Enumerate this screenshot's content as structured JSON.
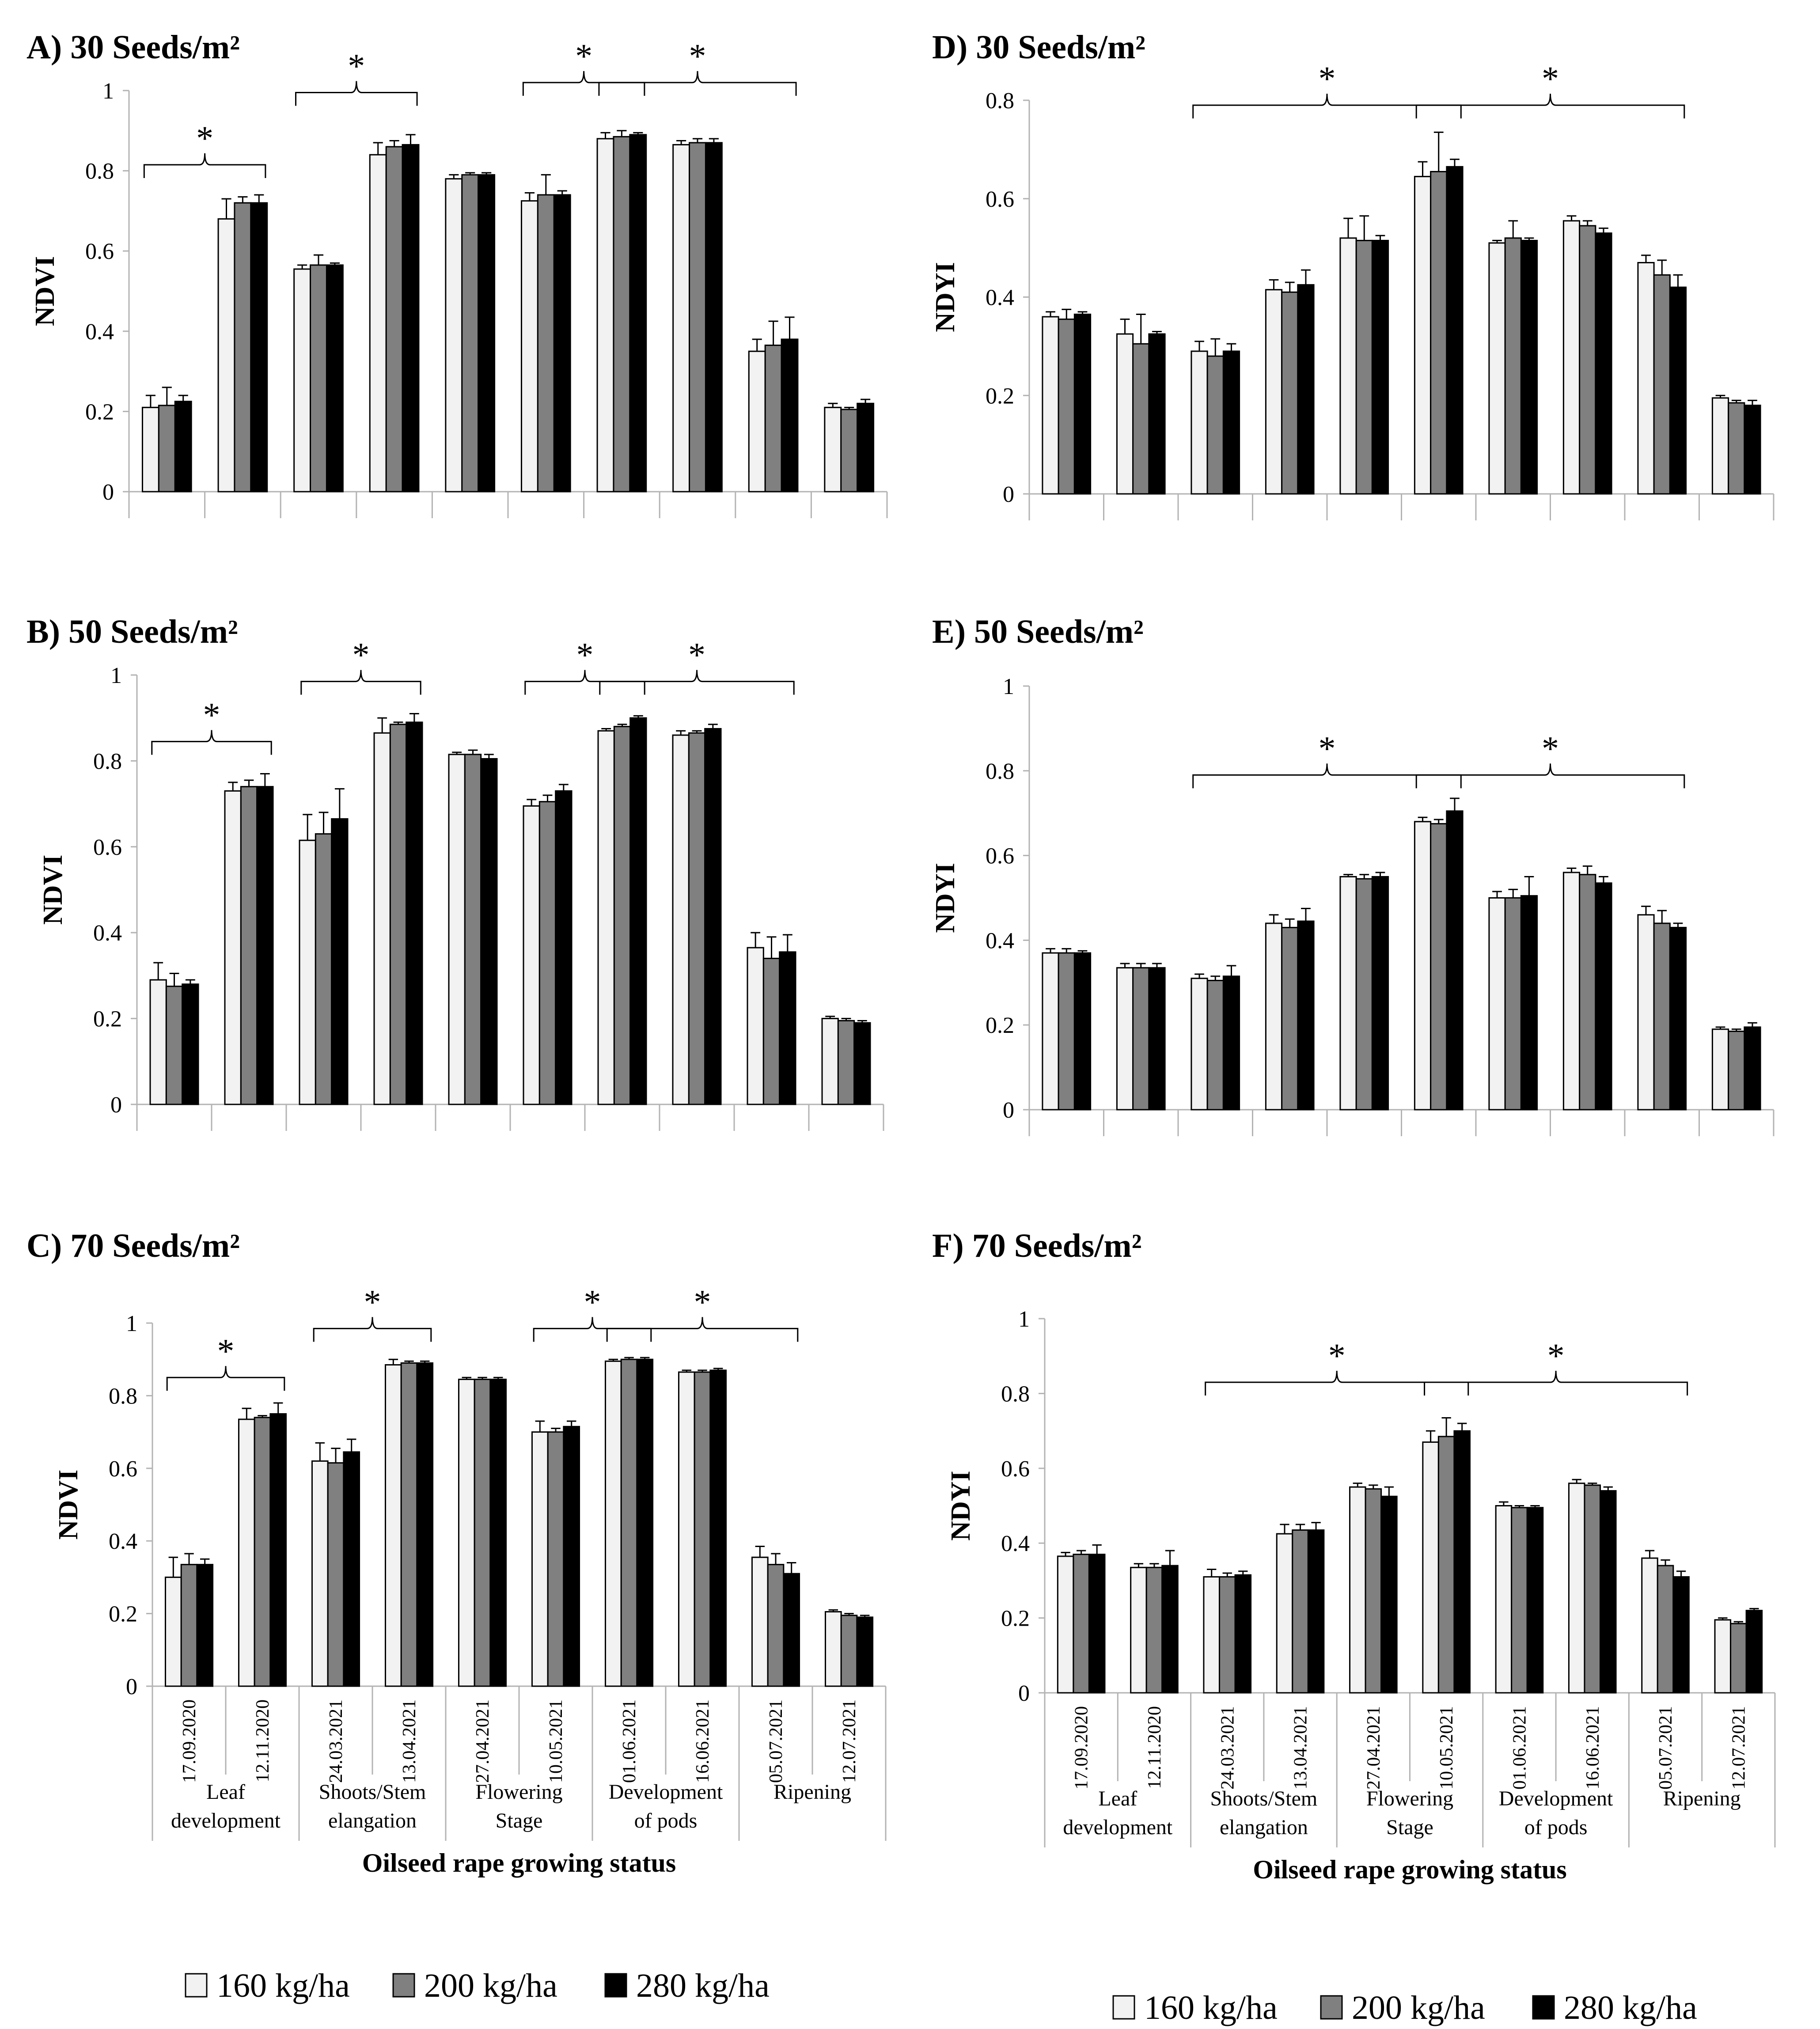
{
  "legend": {
    "left": [
      {
        "label": "160 kg/ha",
        "color": "#f2f2f2"
      },
      {
        "label": "200 kg/ha",
        "color": "#808080"
      },
      {
        "label": "280 kg/ha",
        "color": "#000000"
      }
    ],
    "right": [
      {
        "label": "160 kg/ha",
        "color": "#f2f2f2"
      },
      {
        "label": "200 kg/ha",
        "color": "#808080"
      },
      {
        "label": "280 kg/ha",
        "color": "#000000"
      }
    ]
  },
  "x_title": "Oilseed rape growing status",
  "dates": [
    "17.09.2020",
    "12.11.2020",
    "24.03.2021",
    "13.04.2021",
    "27.04.2021",
    "10.05.2021",
    "01.06.2021",
    "16.06.2021",
    "05.07.2021",
    "12.07.2021"
  ],
  "stages": [
    {
      "line1": "Leaf",
      "line2": "development"
    },
    {
      "line1": "Shoots/Stem",
      "line2": "elangation"
    },
    {
      "line1": "Flowering",
      "line2": "Stage"
    },
    {
      "line1": "Development",
      "line2": "of pods"
    },
    {
      "line1": "Ripening",
      "line2": ""
    }
  ],
  "significance_symbol": "*",
  "chart_data": [
    {
      "type": "bar",
      "title": "A) 30 Seeds/m²",
      "ylabel": "NDVI",
      "ylim": [
        0,
        1
      ],
      "yticks": [
        "0",
        "0.2",
        "0.4",
        "0.6",
        "0.8",
        "1"
      ],
      "categories": [
        "17.09.2020",
        "12.11.2020",
        "24.03.2021",
        "13.04.2021",
        "27.04.2021",
        "10.05.2021",
        "01.06.2021",
        "16.06.2021",
        "05.07.2021",
        "12.07.2021"
      ],
      "series": [
        {
          "name": "160 kg/ha",
          "values": [
            0.21,
            0.68,
            0.555,
            0.84,
            0.78,
            0.725,
            0.88,
            0.865,
            0.35,
            0.21
          ],
          "errors": [
            0.03,
            0.05,
            0.01,
            0.03,
            0.01,
            0.02,
            0.015,
            0.01,
            0.03,
            0.01
          ]
        },
        {
          "name": "200 kg/ha",
          "values": [
            0.215,
            0.72,
            0.565,
            0.86,
            0.79,
            0.74,
            0.885,
            0.87,
            0.365,
            0.205
          ],
          "errors": [
            0.045,
            0.015,
            0.025,
            0.015,
            0.005,
            0.05,
            0.015,
            0.01,
            0.06,
            0.005
          ]
        },
        {
          "name": "280 kg/ha",
          "values": [
            0.225,
            0.72,
            0.565,
            0.865,
            0.79,
            0.74,
            0.89,
            0.87,
            0.38,
            0.22
          ],
          "errors": [
            0.015,
            0.02,
            0.005,
            0.025,
            0.005,
            0.01,
            0.005,
            0.01,
            0.055,
            0.01
          ]
        }
      ],
      "brackets": [
        {
          "from": 0,
          "to": 1,
          "y": 0.815,
          "label": "*"
        },
        {
          "from": 2,
          "to": 3,
          "y": 0.995,
          "label": "*"
        },
        {
          "from": 5,
          "to": 6,
          "y": 1.02,
          "label": "*"
        },
        {
          "from": 6,
          "to": 8,
          "y": 1.02,
          "label": "*"
        }
      ]
    },
    {
      "type": "bar",
      "title": "B) 50 Seeds/m²",
      "ylabel": "NDVI",
      "ylim": [
        0,
        1
      ],
      "yticks": [
        "0",
        "0.2",
        "0.4",
        "0.6",
        "0.8",
        "1"
      ],
      "categories": [
        "17.09.2020",
        "12.11.2020",
        "24.03.2021",
        "13.04.2021",
        "27.04.2021",
        "10.05.2021",
        "01.06.2021",
        "16.06.2021",
        "05.07.2021",
        "12.07.2021"
      ],
      "series": [
        {
          "name": "160 kg/ha",
          "values": [
            0.29,
            0.73,
            0.615,
            0.865,
            0.815,
            0.695,
            0.87,
            0.86,
            0.365,
            0.2
          ],
          "errors": [
            0.04,
            0.02,
            0.06,
            0.035,
            0.005,
            0.015,
            0.005,
            0.01,
            0.035,
            0.005
          ]
        },
        {
          "name": "200 kg/ha",
          "values": [
            0.275,
            0.74,
            0.63,
            0.885,
            0.815,
            0.705,
            0.88,
            0.865,
            0.34,
            0.195
          ],
          "errors": [
            0.03,
            0.015,
            0.05,
            0.005,
            0.01,
            0.015,
            0.005,
            0.005,
            0.05,
            0.005
          ]
        },
        {
          "name": "280 kg/ha",
          "values": [
            0.28,
            0.74,
            0.665,
            0.89,
            0.805,
            0.73,
            0.9,
            0.875,
            0.355,
            0.19
          ],
          "errors": [
            0.01,
            0.03,
            0.07,
            0.02,
            0.01,
            0.015,
            0.005,
            0.01,
            0.04,
            0.005
          ]
        }
      ],
      "brackets": [
        {
          "from": 0,
          "to": 1,
          "y": 0.845,
          "label": "*"
        },
        {
          "from": 2,
          "to": 3,
          "y": 0.985,
          "label": "*"
        },
        {
          "from": 5,
          "to": 6,
          "y": 0.985,
          "label": "*"
        },
        {
          "from": 6,
          "to": 8,
          "y": 0.985,
          "label": "*"
        }
      ]
    },
    {
      "type": "bar",
      "title": "C) 70 Seeds/m²",
      "ylabel": "NDVI",
      "ylim": [
        0,
        1
      ],
      "yticks": [
        "0",
        "0.2",
        "0.4",
        "0.6",
        "0.8",
        "1"
      ],
      "categories": [
        "17.09.2020",
        "12.11.2020",
        "24.03.2021",
        "13.04.2021",
        "27.04.2021",
        "10.05.2021",
        "01.06.2021",
        "16.06.2021",
        "05.07.2021",
        "12.07.2021"
      ],
      "series": [
        {
          "name": "160 kg/ha",
          "values": [
            0.3,
            0.735,
            0.62,
            0.885,
            0.845,
            0.7,
            0.895,
            0.865,
            0.355,
            0.205
          ],
          "errors": [
            0.055,
            0.03,
            0.05,
            0.015,
            0.005,
            0.03,
            0.005,
            0.005,
            0.03,
            0.005
          ]
        },
        {
          "name": "200 kg/ha",
          "values": [
            0.335,
            0.74,
            0.615,
            0.89,
            0.845,
            0.7,
            0.9,
            0.865,
            0.335,
            0.195
          ],
          "errors": [
            0.03,
            0.005,
            0.04,
            0.005,
            0.005,
            0.01,
            0.005,
            0.005,
            0.03,
            0.005
          ]
        },
        {
          "name": "280 kg/ha",
          "values": [
            0.335,
            0.75,
            0.645,
            0.89,
            0.845,
            0.715,
            0.9,
            0.87,
            0.31,
            0.19
          ],
          "errors": [
            0.015,
            0.03,
            0.035,
            0.005,
            0.005,
            0.015,
            0.005,
            0.005,
            0.03,
            0.005
          ]
        }
      ],
      "brackets": [
        {
          "from": 0,
          "to": 1,
          "y": 0.85,
          "label": "*"
        },
        {
          "from": 2,
          "to": 3,
          "y": 0.985,
          "label": "*"
        },
        {
          "from": 5,
          "to": 6,
          "y": 0.985,
          "label": "*"
        },
        {
          "from": 6,
          "to": 8,
          "y": 0.985,
          "label": "*"
        }
      ]
    },
    {
      "type": "bar",
      "title": "D) 30 Seeds/m²",
      "ylabel": "NDYI",
      "ylim": [
        0,
        0.8
      ],
      "yticks": [
        "0",
        "0.2",
        "0.4",
        "0.6",
        "0.8"
      ],
      "categories": [
        "17.09.2020",
        "12.11.2020",
        "24.03.2021",
        "13.04.2021",
        "27.04.2021",
        "10.05.2021",
        "01.06.2021",
        "16.06.2021",
        "05.07.2021",
        "12.07.2021"
      ],
      "series": [
        {
          "name": "160 kg/ha",
          "values": [
            0.36,
            0.325,
            0.29,
            0.415,
            0.52,
            0.645,
            0.51,
            0.555,
            0.47,
            0.195
          ],
          "errors": [
            0.01,
            0.03,
            0.02,
            0.02,
            0.04,
            0.03,
            0.005,
            0.01,
            0.015,
            0.005
          ]
        },
        {
          "name": "200 kg/ha",
          "values": [
            0.355,
            0.305,
            0.28,
            0.41,
            0.515,
            0.655,
            0.52,
            0.545,
            0.445,
            0.185
          ],
          "errors": [
            0.02,
            0.06,
            0.035,
            0.02,
            0.05,
            0.08,
            0.035,
            0.01,
            0.03,
            0.005
          ]
        },
        {
          "name": "280 kg/ha",
          "values": [
            0.365,
            0.325,
            0.29,
            0.425,
            0.515,
            0.665,
            0.515,
            0.53,
            0.42,
            0.18
          ],
          "errors": [
            0.005,
            0.005,
            0.015,
            0.03,
            0.01,
            0.015,
            0.005,
            0.01,
            0.025,
            0.01
          ]
        }
      ],
      "brackets": [
        {
          "from": 2,
          "to": 5,
          "y": 0.79,
          "label": "*"
        },
        {
          "from": 5,
          "to": 8,
          "y": 0.79,
          "label": "*"
        }
      ]
    },
    {
      "type": "bar",
      "title": "E) 50 Seeds/m²",
      "ylabel": "NDYI",
      "ylim": [
        0,
        1
      ],
      "yticks": [
        "0",
        "0.2",
        "0.4",
        "0.6",
        "0.8",
        "1"
      ],
      "categories": [
        "17.09.2020",
        "12.11.2020",
        "24.03.2021",
        "13.04.2021",
        "27.04.2021",
        "10.05.2021",
        "01.06.2021",
        "16.06.2021",
        "05.07.2021",
        "12.07.2021"
      ],
      "series": [
        {
          "name": "160 kg/ha",
          "values": [
            0.37,
            0.335,
            0.31,
            0.44,
            0.55,
            0.68,
            0.5,
            0.56,
            0.46,
            0.19
          ],
          "errors": [
            0.01,
            0.01,
            0.01,
            0.02,
            0.005,
            0.01,
            0.015,
            0.01,
            0.02,
            0.005
          ]
        },
        {
          "name": "200 kg/ha",
          "values": [
            0.37,
            0.335,
            0.305,
            0.43,
            0.545,
            0.675,
            0.5,
            0.555,
            0.44,
            0.185
          ],
          "errors": [
            0.01,
            0.01,
            0.01,
            0.02,
            0.01,
            0.01,
            0.02,
            0.02,
            0.03,
            0.005
          ]
        },
        {
          "name": "280 kg/ha",
          "values": [
            0.37,
            0.335,
            0.315,
            0.445,
            0.55,
            0.705,
            0.505,
            0.535,
            0.43,
            0.195
          ],
          "errors": [
            0.005,
            0.01,
            0.025,
            0.03,
            0.01,
            0.03,
            0.045,
            0.015,
            0.01,
            0.01
          ]
        }
      ],
      "brackets": [
        {
          "from": 2,
          "to": 5,
          "y": 0.79,
          "label": "*"
        },
        {
          "from": 5,
          "to": 8,
          "y": 0.79,
          "label": "*"
        }
      ]
    },
    {
      "type": "bar",
      "title": "F) 70 Seeds/m²",
      "ylabel": "NDYI",
      "ylim": [
        0,
        1
      ],
      "yticks": [
        "0",
        "0.2",
        "0.4",
        "0.6",
        "0.8",
        "1"
      ],
      "categories": [
        "17.09.2020",
        "12.11.2020",
        "24.03.2021",
        "13.04.2021",
        "27.04.2021",
        "10.05.2021",
        "01.06.2021",
        "16.06.2021",
        "05.07.2021",
        "12.07.2021"
      ],
      "series": [
        {
          "name": "160 kg/ha",
          "values": [
            0.365,
            0.335,
            0.31,
            0.425,
            0.55,
            0.67,
            0.5,
            0.56,
            0.36,
            0.195
          ],
          "errors": [
            0.01,
            0.01,
            0.02,
            0.025,
            0.01,
            0.03,
            0.01,
            0.01,
            0.02,
            0.005
          ]
        },
        {
          "name": "200 kg/ha",
          "values": [
            0.37,
            0.335,
            0.31,
            0.435,
            0.545,
            0.685,
            0.495,
            0.555,
            0.34,
            0.185
          ],
          "errors": [
            0.01,
            0.01,
            0.01,
            0.015,
            0.01,
            0.05,
            0.005,
            0.005,
            0.015,
            0.005
          ]
        },
        {
          "name": "280 kg/ha",
          "values": [
            0.37,
            0.34,
            0.315,
            0.435,
            0.525,
            0.7,
            0.495,
            0.54,
            0.31,
            0.22
          ],
          "errors": [
            0.025,
            0.04,
            0.01,
            0.02,
            0.025,
            0.02,
            0.005,
            0.01,
            0.015,
            0.005
          ]
        }
      ],
      "brackets": [
        {
          "from": 2,
          "to": 5,
          "y": 0.83,
          "label": "*"
        },
        {
          "from": 5,
          "to": 8,
          "y": 0.83,
          "label": "*"
        }
      ]
    }
  ]
}
